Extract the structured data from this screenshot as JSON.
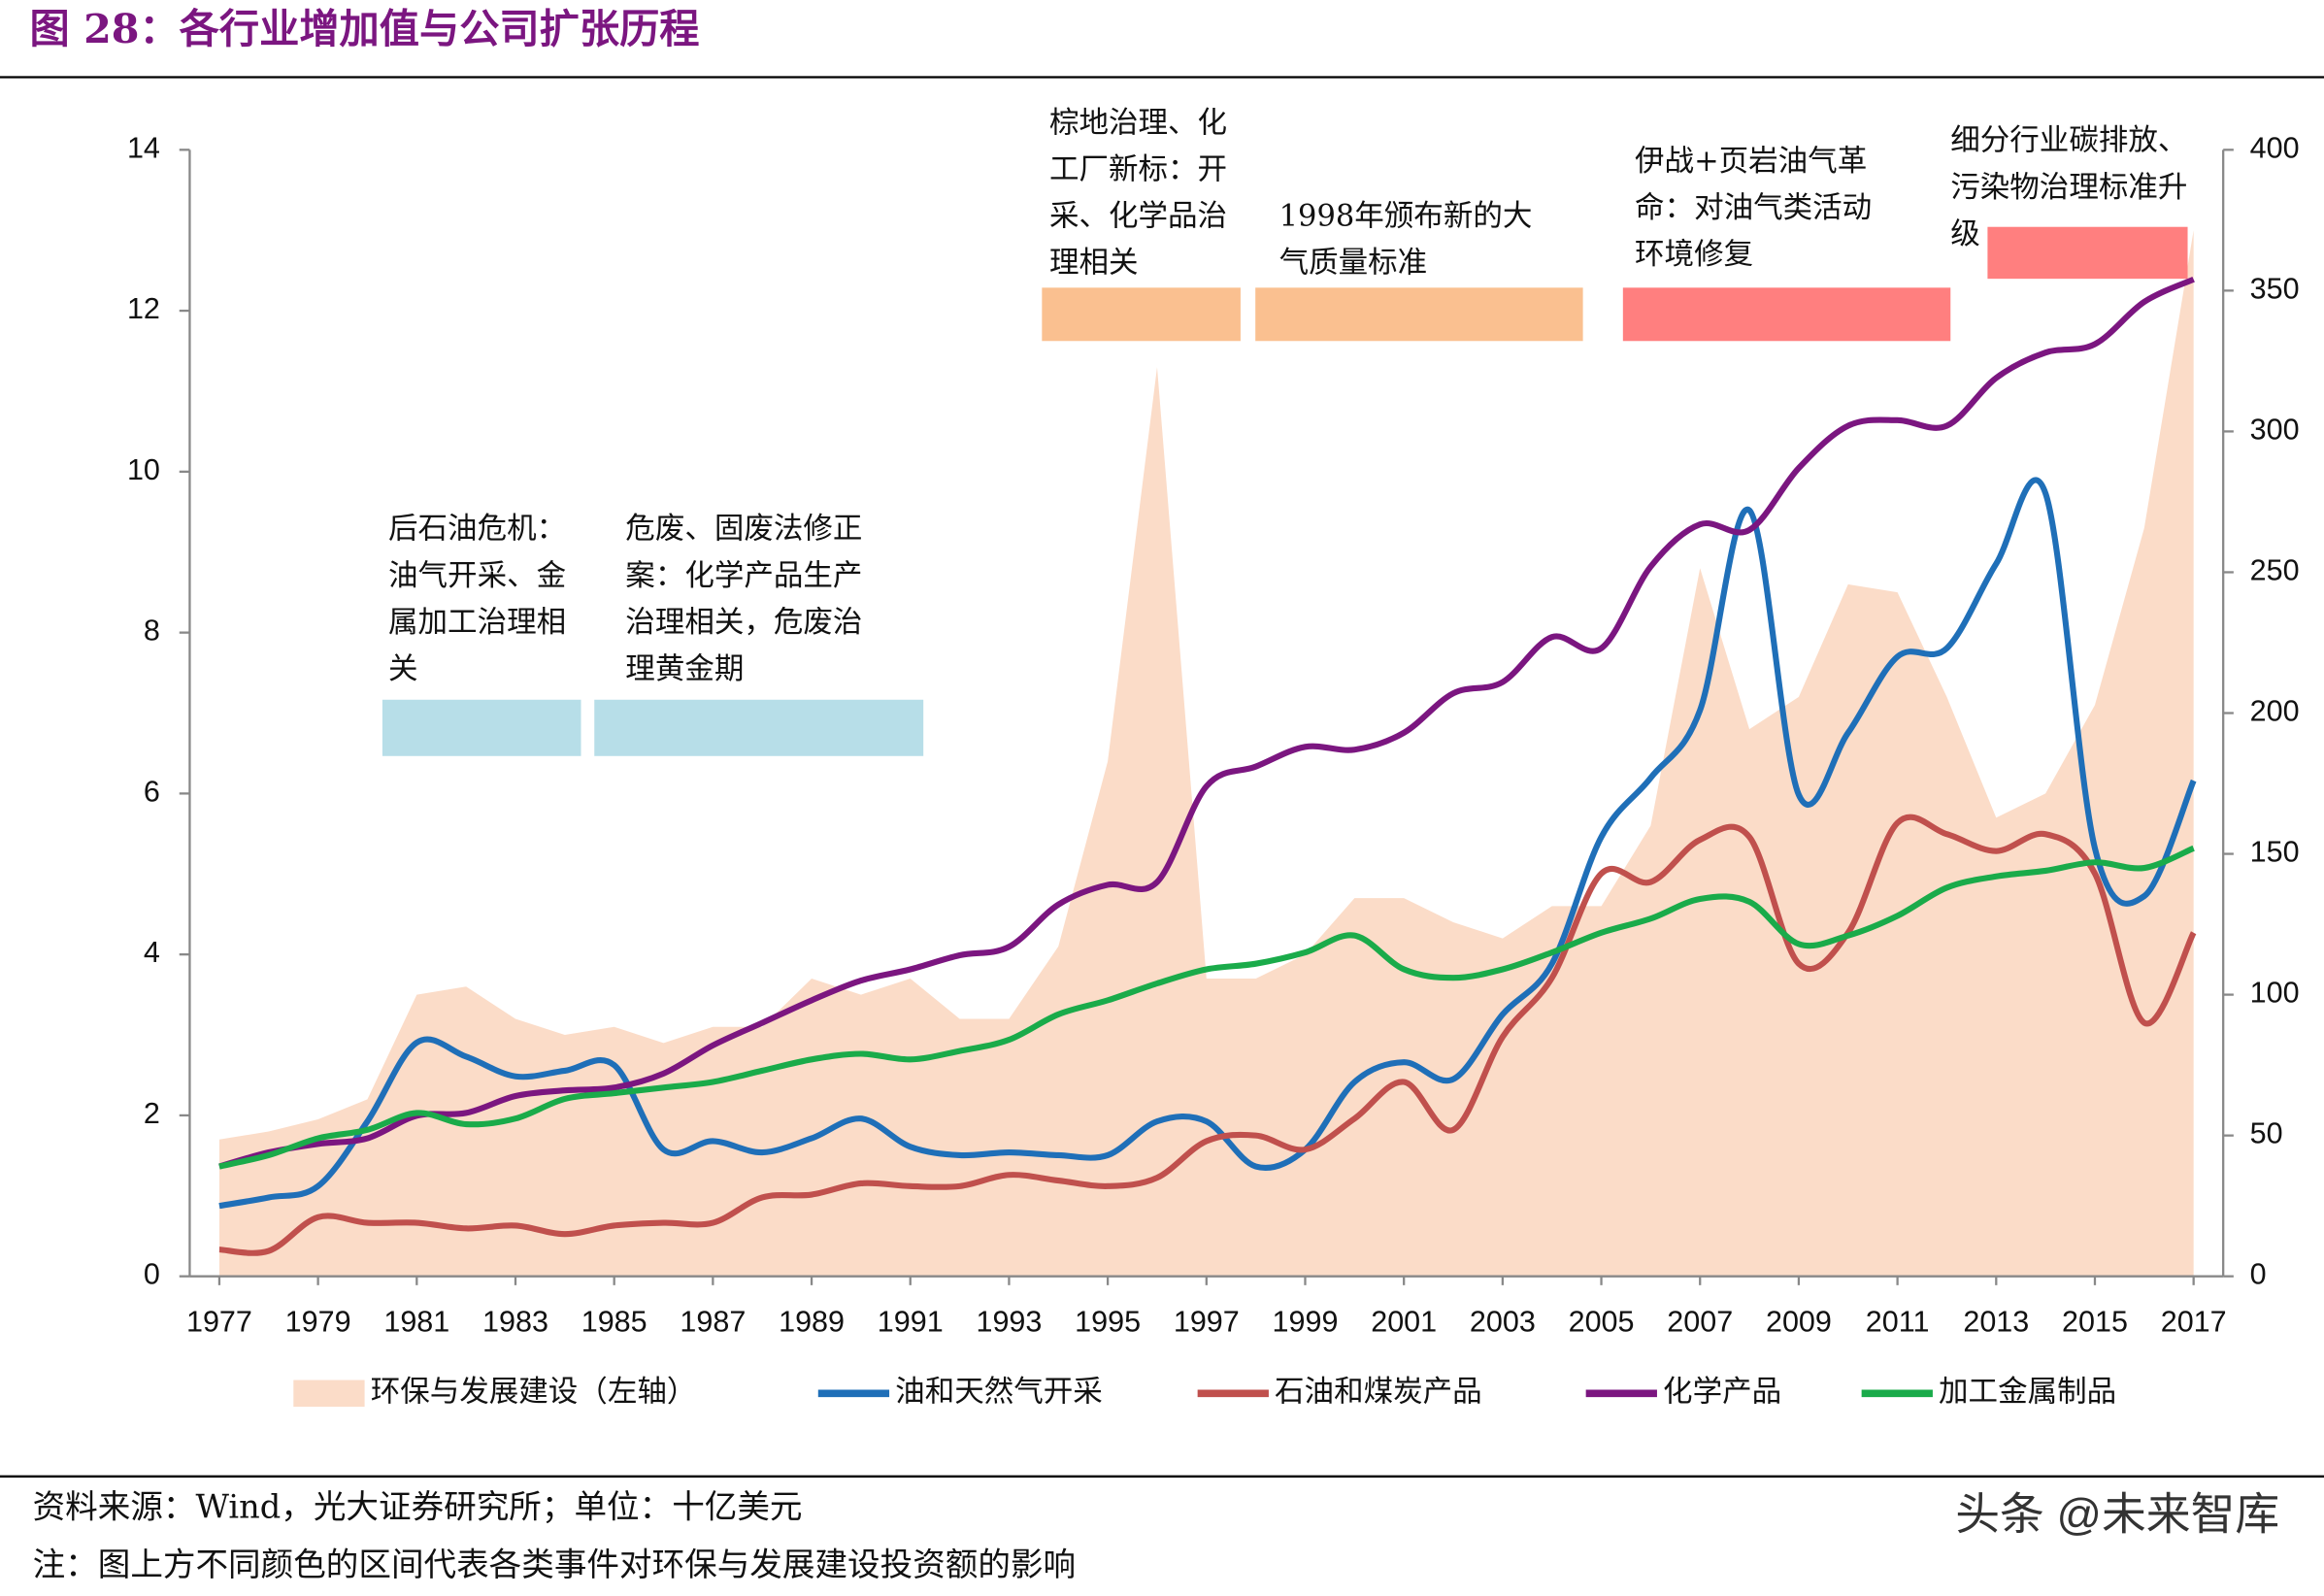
{
  "title": "图 28：各行业增加值与公司扩张历程",
  "chart_data": {
    "type": "line",
    "x": [
      1977,
      1978,
      1979,
      1980,
      1981,
      1982,
      1983,
      1984,
      1985,
      1986,
      1987,
      1988,
      1989,
      1990,
      1991,
      1992,
      1993,
      1994,
      1995,
      1996,
      1997,
      1998,
      1999,
      2000,
      2001,
      2002,
      2003,
      2004,
      2005,
      2006,
      2007,
      2008,
      2009,
      2010,
      2011,
      2012,
      2013,
      2014,
      2015,
      2016,
      2017
    ],
    "xlim": [
      1976.4,
      2017.6
    ],
    "xticks": [
      1977,
      1979,
      1981,
      1983,
      1985,
      1987,
      1989,
      1991,
      1993,
      1995,
      1997,
      1999,
      2001,
      2003,
      2005,
      2007,
      2009,
      2011,
      2013,
      2015,
      2017
    ],
    "ylim": [
      0,
      14
    ],
    "yticks": [
      0,
      2,
      4,
      6,
      8,
      10,
      12,
      14
    ],
    "y2lim": [
      0,
      400
    ],
    "y2ticks": [
      0,
      50,
      100,
      150,
      200,
      250,
      300,
      350,
      400
    ],
    "series": [
      {
        "name": "环保与发展建设（左轴）",
        "type": "area",
        "color": "#fbdcc8",
        "values": [
          1.7,
          1.8,
          1.95,
          2.2,
          3.5,
          3.6,
          3.2,
          3.0,
          3.1,
          2.9,
          3.1,
          3.1,
          3.7,
          3.5,
          3.7,
          3.2,
          3.2,
          4.1,
          6.4,
          11.3,
          3.7,
          3.7,
          4.0,
          4.7,
          4.7,
          4.4,
          4.2,
          4.6,
          4.6,
          5.6,
          8.8,
          6.8,
          7.2,
          8.6,
          8.5,
          7.2,
          5.7,
          6.0,
          7.1,
          9.3,
          13.0
        ]
      },
      {
        "name": "油和天然气开采",
        "axis": "y2",
        "color": "#1f6fb8",
        "values": [
          25,
          28,
          32,
          55,
          83,
          78,
          71,
          73,
          75,
          45,
          48,
          44,
          49,
          56,
          46,
          43,
          44,
          43,
          43,
          55,
          55,
          39,
          45,
          69,
          76,
          70,
          93,
          111,
          156,
          177,
          201,
          272,
          171,
          193,
          220,
          223,
          253,
          278,
          152,
          135,
          176
        ]
      },
      {
        "name": "石油和煤炭产品",
        "axis": "y2",
        "color": "#c0504d",
        "values": [
          9.5,
          9,
          21,
          19,
          19,
          17,
          18,
          15,
          18,
          19,
          19,
          28,
          29,
          33,
          32,
          32,
          36,
          34,
          32,
          35,
          48,
          50,
          45,
          56,
          69,
          52,
          85,
          106,
          143,
          140,
          155,
          156,
          111,
          122,
          161,
          157,
          151,
          157,
          143,
          90,
          122
        ]
      },
      {
        "name": "化学产品",
        "axis": "y2",
        "color": "#7b1680",
        "values": [
          39,
          44,
          47,
          49,
          57,
          58,
          64,
          66,
          67,
          72,
          82,
          90,
          98,
          105,
          109,
          114,
          117,
          132,
          139,
          140,
          174,
          181,
          188,
          187,
          193,
          207,
          211,
          227,
          223,
          252,
          267,
          265,
          287,
          302,
          304,
          302,
          319,
          328,
          331,
          346,
          354
        ]
      },
      {
        "name": "加工金属制品",
        "axis": "y2",
        "color": "#1aab4a",
        "values": [
          39,
          43,
          49,
          52,
          58,
          54,
          56,
          63,
          65,
          67,
          69,
          73,
          77,
          79,
          77,
          80,
          84,
          93,
          98,
          104,
          109,
          111,
          115,
          121,
          109,
          106,
          109,
          115,
          122,
          127,
          134,
          133,
          118,
          121,
          128,
          138,
          142,
          144,
          147,
          145,
          152
        ]
      }
    ],
    "annotations": [
      {
        "lines": [
          "后石油危机：",
          "油气开采、金",
          "属加工治理相",
          "关"
        ],
        "color": "#b7dee8"
      },
      {
        "lines": [
          "危废、固废法修正",
          "案：化学产品生产",
          "治理相关，危废治",
          "理黄金期"
        ],
        "color": "#b7dee8"
      },
      {
        "lines": [
          "棕地治理、化",
          "工厂新标：开",
          "采、化学品治",
          "理相关"
        ],
        "color": "#fac090"
      },
      {
        "lines": [
          "1998年颁布新的大",
          "气质量标准"
        ],
        "color": "#fac090"
      },
      {
        "lines": [
          "伊战+页岩油气革",
          "命：对油气类活动",
          "环境修复"
        ],
        "color": "#ff7f7f"
      },
      {
        "lines": [
          "细分行业碳排放、",
          "污染物治理标准升",
          "级"
        ],
        "color": "#ff7f7f"
      }
    ]
  },
  "footer": {
    "source": "资料来源：Wind，光大证券研究所；单位：十亿美元",
    "note": "注：图上方不同颜色的区间代表各类事件对环保与发展建设投资额的影响",
    "watermark": "头条 @未来智库"
  }
}
